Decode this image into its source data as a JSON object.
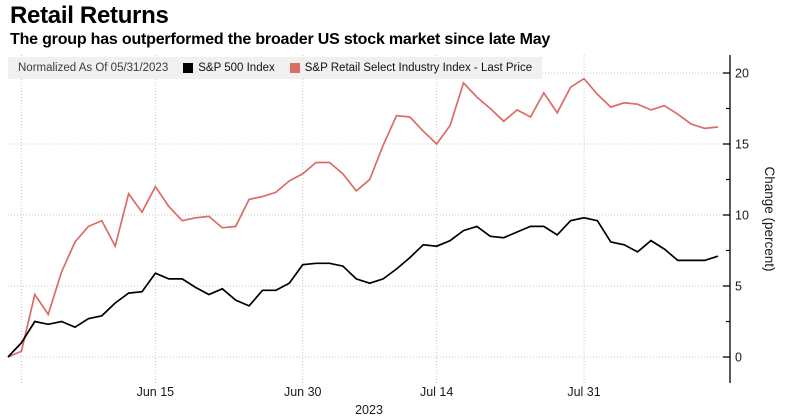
{
  "header": {
    "title": "Retail Returns",
    "subtitle": "The group has outperformed the broader US stock market since late May"
  },
  "legend": {
    "normalized_label": "Normalized As Of 05/31/2023",
    "items": [
      {
        "label": "S&P 500 Index",
        "color": "#000000"
      },
      {
        "label": "S&P Retail Select Industry Index - Last Price",
        "color": "#dd6b66"
      }
    ]
  },
  "chart_data": {
    "type": "line",
    "title": "Retail Returns",
    "ylabel": "Change (percent)",
    "xlabel_year": "2023",
    "ylim": [
      -1.8,
      21.3
    ],
    "yticks": [
      0,
      5,
      10,
      15,
      20
    ],
    "yticks_minor": [
      2.5,
      7.5,
      12.5,
      17.5
    ],
    "grid": "dotted",
    "legend_position": "top-left",
    "x": [
      "05/31",
      "06/01",
      "06/02",
      "06/05",
      "06/06",
      "06/07",
      "06/08",
      "06/09",
      "06/12",
      "06/13",
      "06/14",
      "06/15",
      "06/16",
      "06/19",
      "06/20",
      "06/21",
      "06/22",
      "06/23",
      "06/26",
      "06/27",
      "06/28",
      "06/29",
      "06/30",
      "07/03",
      "07/04",
      "07/05",
      "07/06",
      "07/07",
      "07/10",
      "07/11",
      "07/12",
      "07/13",
      "07/14",
      "07/17",
      "07/18",
      "07/19",
      "07/20",
      "07/21",
      "07/24",
      "07/25",
      "07/26",
      "07/27",
      "07/28",
      "07/31",
      "08/01",
      "08/02",
      "08/03",
      "08/04",
      "08/07",
      "08/08",
      "08/09",
      "08/10",
      "08/11",
      "08/14"
    ],
    "xticks": [
      {
        "index": 11,
        "label": "Jun 15"
      },
      {
        "index": 22,
        "label": "Jun 30"
      },
      {
        "index": 32,
        "label": "Jul 14"
      },
      {
        "index": 43,
        "label": "Jul 31"
      }
    ],
    "grid_x_indices": [
      1,
      11,
      22,
      32,
      43
    ],
    "series": [
      {
        "name": "S&P Retail Select Industry Index - Last Price",
        "color": "#dd6b66",
        "values": [
          0,
          0.4,
          4.4,
          3.0,
          6.0,
          8.1,
          9.2,
          9.6,
          7.8,
          11.5,
          10.2,
          12.0,
          10.6,
          9.6,
          9.8,
          9.9,
          9.1,
          9.2,
          11.1,
          11.3,
          11.6,
          12.4,
          12.9,
          13.7,
          13.7,
          12.9,
          11.7,
          12.5,
          14.9,
          17.0,
          16.9,
          15.9,
          15.0,
          16.3,
          19.3,
          18.3,
          17.5,
          16.6,
          17.4,
          16.9,
          18.6,
          17.2,
          19.0,
          19.6,
          18.5,
          17.6,
          17.9,
          17.8,
          17.4,
          17.7,
          17.1,
          16.4,
          16.1,
          16.2
        ]
      },
      {
        "name": "S&P 500 Index",
        "color": "#000000",
        "values": [
          0,
          1.0,
          2.5,
          2.3,
          2.5,
          2.1,
          2.7,
          2.9,
          3.8,
          4.5,
          4.6,
          5.9,
          5.5,
          5.5,
          4.9,
          4.4,
          4.8,
          4.0,
          3.6,
          4.7,
          4.7,
          5.2,
          6.5,
          6.6,
          6.6,
          6.4,
          5.5,
          5.2,
          5.5,
          6.2,
          7.0,
          7.9,
          7.8,
          8.2,
          8.9,
          9.2,
          8.5,
          8.4,
          8.8,
          9.2,
          9.2,
          8.6,
          9.6,
          9.8,
          9.6,
          8.1,
          7.9,
          7.4,
          8.2,
          7.6,
          6.8,
          6.8,
          6.8,
          7.1
        ]
      }
    ]
  }
}
